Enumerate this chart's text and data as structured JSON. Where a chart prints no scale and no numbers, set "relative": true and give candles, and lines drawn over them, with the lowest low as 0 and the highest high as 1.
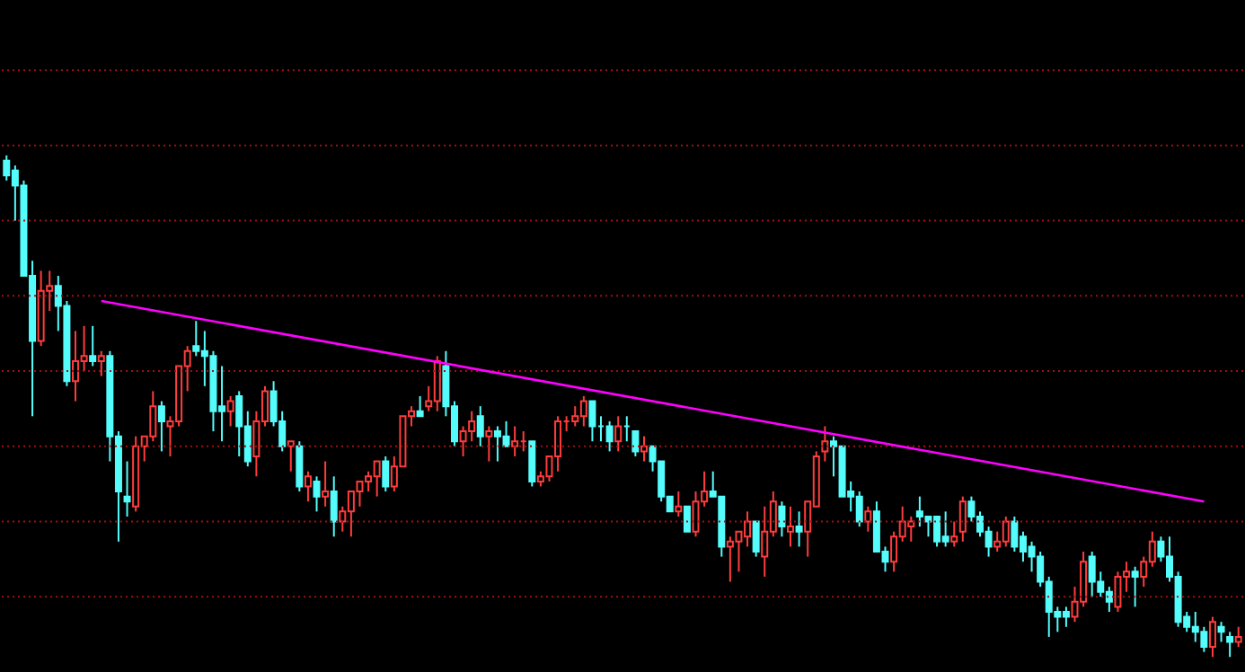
{
  "chart_data": {
    "type": "candlestick",
    "relative": true,
    "ref_lines": [
      {
        "axis": "y",
        "value": 1.17,
        "color": "#a01010",
        "line_style": "dotted"
      },
      {
        "axis": "y",
        "value": 1.02,
        "color": "#a01010",
        "line_style": "dotted"
      },
      {
        "axis": "y",
        "value": 0.87,
        "color": "#a01010",
        "line_style": "dotted"
      },
      {
        "axis": "y",
        "value": 0.72,
        "color": "#a01010",
        "line_style": "dotted"
      },
      {
        "axis": "y",
        "value": 0.57,
        "color": "#a01010",
        "line_style": "dotted"
      },
      {
        "axis": "y",
        "value": 0.42,
        "color": "#a01010",
        "line_style": "dotted"
      },
      {
        "axis": "y",
        "value": 0.27,
        "color": "#a01010",
        "line_style": "dotted"
      },
      {
        "axis": "y",
        "value": 0.12,
        "color": "#a01010",
        "line_style": "dotted"
      }
    ],
    "categories": [
      null,
      null,
      null,
      null,
      null,
      null,
      null,
      null,
      null,
      null,
      null,
      null,
      null,
      null,
      null,
      null,
      null,
      null,
      null,
      null,
      null,
      null,
      null,
      null,
      null,
      null,
      null,
      null,
      null,
      null,
      null,
      null,
      null,
      null,
      null,
      null,
      null,
      null,
      null,
      null,
      null,
      null,
      null,
      null,
      null,
      null,
      null,
      null,
      null,
      null,
      null,
      null,
      null,
      null,
      null,
      null,
      null,
      null,
      null,
      null,
      null,
      null,
      null,
      null,
      null,
      null,
      null,
      null,
      null,
      null,
      null,
      null,
      null,
      null,
      null,
      null,
      null,
      null,
      null,
      null,
      null,
      null,
      null,
      null,
      null,
      null,
      null,
      null,
      null,
      null,
      null,
      null,
      null,
      null,
      null,
      null,
      null,
      null,
      null,
      null,
      null,
      null,
      null,
      null,
      null,
      null,
      null,
      null,
      null,
      null,
      null,
      null,
      null,
      null,
      null,
      null,
      null,
      null,
      null,
      null,
      null,
      null,
      null,
      null,
      null,
      null,
      null,
      null,
      null,
      null,
      null,
      null,
      null,
      null,
      null,
      null,
      null,
      null,
      null,
      null,
      null,
      null,
      null,
      null
    ],
    "ohlc": [
      [
        0.99,
        1,
        0.95,
        0.96
      ],
      [
        0.97,
        0.98,
        0.87,
        0.94
      ],
      [
        0.94,
        0.95,
        0.76,
        0.76
      ],
      [
        0.76,
        0.79,
        0.48,
        0.63
      ],
      [
        0.63,
        0.77,
        0.62,
        0.73
      ],
      [
        0.73,
        0.77,
        0.69,
        0.74
      ],
      [
        0.74,
        0.76,
        0.65,
        0.7
      ],
      [
        0.7,
        0.71,
        0.54,
        0.55
      ],
      [
        0.55,
        0.65,
        0.51,
        0.59
      ],
      [
        0.59,
        0.66,
        0.57,
        0.6
      ],
      [
        0.6,
        0.66,
        0.58,
        0.59
      ],
      [
        0.59,
        0.61,
        0.56,
        0.6
      ],
      [
        0.6,
        0.61,
        0.39,
        0.44
      ],
      [
        0.44,
        0.45,
        0.23,
        0.33
      ],
      [
        0.32,
        0.39,
        0.28,
        0.31
      ],
      [
        0.3,
        0.44,
        0.29,
        0.42
      ],
      [
        0.42,
        0.44,
        0.39,
        0.44
      ],
      [
        0.44,
        0.53,
        0.43,
        0.5
      ],
      [
        0.5,
        0.51,
        0.41,
        0.47
      ],
      [
        0.46,
        0.48,
        0.4,
        0.47
      ],
      [
        0.47,
        0.58,
        0.46,
        0.58
      ],
      [
        0.58,
        0.62,
        0.53,
        0.61
      ],
      [
        0.62,
        0.67,
        0.6,
        0.61
      ],
      [
        0.61,
        0.65,
        0.54,
        0.6
      ],
      [
        0.6,
        0.61,
        0.45,
        0.49
      ],
      [
        0.5,
        0.58,
        0.43,
        0.49
      ],
      [
        0.49,
        0.52,
        0.46,
        0.51
      ],
      [
        0.52,
        0.53,
        0.4,
        0.46
      ],
      [
        0.46,
        0.49,
        0.38,
        0.39
      ],
      [
        0.4,
        0.49,
        0.36,
        0.47
      ],
      [
        0.47,
        0.54,
        0.46,
        0.53
      ],
      [
        0.53,
        0.55,
        0.46,
        0.47
      ],
      [
        0.47,
        0.49,
        0.41,
        0.42
      ],
      [
        0.42,
        0.43,
        0.37,
        0.43
      ],
      [
        0.42,
        0.43,
        0.33,
        0.34
      ],
      [
        0.34,
        0.37,
        0.31,
        0.36
      ],
      [
        0.35,
        0.36,
        0.29,
        0.32
      ],
      [
        0.32,
        0.39,
        0.3,
        0.33
      ],
      [
        0.33,
        0.36,
        0.24,
        0.27
      ],
      [
        0.27,
        0.3,
        0.25,
        0.29
      ],
      [
        0.29,
        0.33,
        0.24,
        0.33
      ],
      [
        0.33,
        0.35,
        0.3,
        0.35
      ],
      [
        0.35,
        0.37,
        0.33,
        0.36
      ],
      [
        0.36,
        0.39,
        0.32,
        0.39
      ],
      [
        0.39,
        0.4,
        0.33,
        0.34
      ],
      [
        0.34,
        0.4,
        0.33,
        0.38
      ],
      [
        0.38,
        0.48,
        0.38,
        0.48
      ],
      [
        0.48,
        0.5,
        0.46,
        0.49
      ],
      [
        0.49,
        0.52,
        0.48,
        0.48
      ],
      [
        0.5,
        0.54,
        0.49,
        0.51
      ],
      [
        0.51,
        0.6,
        0.49,
        0.59
      ],
      [
        0.58,
        0.61,
        0.48,
        0.5
      ],
      [
        0.5,
        0.51,
        0.42,
        0.43
      ],
      [
        0.43,
        0.46,
        0.4,
        0.45
      ],
      [
        0.45,
        0.49,
        0.43,
        0.47
      ],
      [
        0.48,
        0.5,
        0.42,
        0.44
      ],
      [
        0.44,
        0.46,
        0.39,
        0.45
      ],
      [
        0.45,
        0.46,
        0.39,
        0.44
      ],
      [
        0.44,
        0.47,
        0.42,
        0.42
      ],
      [
        0.42,
        0.46,
        0.4,
        0.43
      ],
      [
        0.43,
        0.45,
        0.41,
        0.43
      ],
      [
        0.43,
        0.43,
        0.34,
        0.35
      ],
      [
        0.35,
        0.37,
        0.34,
        0.36
      ],
      [
        0.36,
        0.4,
        0.35,
        0.4
      ],
      [
        0.4,
        0.48,
        0.37,
        0.47
      ],
      [
        0.47,
        0.48,
        0.45,
        0.47
      ],
      [
        0.47,
        0.5,
        0.46,
        0.48
      ],
      [
        0.48,
        0.52,
        0.46,
        0.51
      ],
      [
        0.51,
        0.51,
        0.43,
        0.46
      ],
      [
        0.46,
        0.48,
        0.43,
        0.46
      ],
      [
        0.46,
        0.47,
        0.41,
        0.43
      ],
      [
        0.43,
        0.48,
        0.41,
        0.46
      ],
      [
        0.46,
        0.48,
        0.43,
        0.46
      ],
      [
        0.45,
        0.45,
        0.4,
        0.41
      ],
      [
        0.41,
        0.44,
        0.39,
        0.42
      ],
      [
        0.42,
        0.42,
        0.37,
        0.39
      ],
      [
        0.39,
        0.39,
        0.31,
        0.32
      ],
      [
        0.32,
        0.32,
        0.29,
        0.29
      ],
      [
        0.29,
        0.33,
        0.28,
        0.3
      ],
      [
        0.3,
        0.3,
        0.25,
        0.25
      ],
      [
        0.25,
        0.33,
        0.24,
        0.31
      ],
      [
        0.31,
        0.37,
        0.3,
        0.33
      ],
      [
        0.33,
        0.37,
        0.32,
        0.32
      ],
      [
        0.32,
        0.32,
        0.2,
        0.22
      ],
      [
        0.22,
        0.24,
        0.15,
        0.23
      ],
      [
        0.23,
        0.25,
        0.17,
        0.25
      ],
      [
        0.24,
        0.29,
        0.22,
        0.27
      ],
      [
        0.27,
        0.27,
        0.2,
        0.21
      ],
      [
        0.2,
        0.3,
        0.16,
        0.25
      ],
      [
        0.25,
        0.33,
        0.24,
        0.31
      ],
      [
        0.3,
        0.31,
        0.24,
        0.26
      ],
      [
        0.25,
        0.3,
        0.22,
        0.26
      ],
      [
        0.26,
        0.29,
        0.22,
        0.25
      ],
      [
        0.25,
        0.31,
        0.2,
        0.31
      ],
      [
        0.3,
        0.41,
        0.3,
        0.4
      ],
      [
        0.41,
        0.46,
        0.39,
        0.43
      ],
      [
        0.43,
        0.44,
        0.36,
        0.42
      ],
      [
        0.42,
        0.42,
        0.32,
        0.32
      ],
      [
        0.33,
        0.35,
        0.29,
        0.32
      ],
      [
        0.32,
        0.33,
        0.26,
        0.27
      ],
      [
        0.27,
        0.3,
        0.25,
        0.29
      ],
      [
        0.29,
        0.31,
        0.21,
        0.21
      ],
      [
        0.21,
        0.22,
        0.17,
        0.19
      ],
      [
        0.19,
        0.25,
        0.17,
        0.24
      ],
      [
        0.24,
        0.3,
        0.23,
        0.27
      ],
      [
        0.26,
        0.28,
        0.23,
        0.27
      ],
      [
        0.29,
        0.32,
        0.26,
        0.28
      ],
      [
        0.28,
        0.28,
        0.24,
        0.27
      ],
      [
        0.28,
        0.28,
        0.22,
        0.23
      ],
      [
        0.24,
        0.29,
        0.22,
        0.23
      ],
      [
        0.23,
        0.27,
        0.22,
        0.24
      ],
      [
        0.25,
        0.32,
        0.23,
        0.31
      ],
      [
        0.31,
        0.32,
        0.27,
        0.28
      ],
      [
        0.28,
        0.29,
        0.24,
        0.25
      ],
      [
        0.25,
        0.26,
        0.2,
        0.22
      ],
      [
        0.22,
        0.25,
        0.21,
        0.23
      ],
      [
        0.23,
        0.28,
        0.22,
        0.27
      ],
      [
        0.27,
        0.28,
        0.21,
        0.22
      ],
      [
        0.24,
        0.25,
        0.19,
        0.21
      ],
      [
        0.22,
        0.23,
        0.17,
        0.2
      ],
      [
        0.2,
        0.21,
        0.14,
        0.15
      ],
      [
        0.15,
        0.16,
        0.04,
        0.09
      ],
      [
        0.09,
        0.1,
        0.05,
        0.08
      ],
      [
        0.09,
        0.1,
        0.06,
        0.08
      ],
      [
        0.08,
        0.14,
        0.07,
        0.11
      ],
      [
        0.11,
        0.21,
        0.1,
        0.19
      ],
      [
        0.2,
        0.21,
        0.12,
        0.15
      ],
      [
        0.15,
        0.17,
        0.12,
        0.13
      ],
      [
        0.13,
        0.14,
        0.09,
        0.11
      ],
      [
        0.1,
        0.17,
        0.09,
        0.16
      ],
      [
        0.16,
        0.19,
        0.13,
        0.17
      ],
      [
        0.17,
        0.18,
        0.1,
        0.16
      ],
      [
        0.16,
        0.2,
        0.14,
        0.19
      ],
      [
        0.19,
        0.25,
        0.18,
        0.23
      ],
      [
        0.23,
        0.24,
        0.19,
        0.2
      ],
      [
        0.2,
        0.24,
        0.15,
        0.16
      ],
      [
        0.16,
        0.17,
        0.06,
        0.07
      ],
      [
        0.08,
        0.09,
        0.05,
        0.06
      ],
      [
        0.06,
        0.09,
        0.03,
        0.05
      ],
      [
        0.05,
        0.06,
        0.01,
        0.02
      ],
      [
        0.02,
        0.08,
        0,
        0.07
      ],
      [
        0.06,
        0.07,
        0.03,
        0.05
      ],
      [
        0.04,
        0.05,
        0,
        0.03
      ],
      [
        0.03,
        0.06,
        0.02,
        0.04
      ]
    ],
    "colors": [
      "#54fcfc",
      "#54fcfc",
      "#54fcfc",
      "#54fcfc",
      "#ff3c3c",
      "#ff3c3c",
      "#54fcfc",
      "#54fcfc",
      "#ff3c3c",
      "#ff3c3c",
      "#54fcfc",
      "#ff3c3c",
      "#54fcfc",
      "#54fcfc",
      "#54fcfc",
      "#ff3c3c",
      "#ff3c3c",
      "#ff3c3c",
      "#54fcfc",
      "#ff3c3c",
      "#ff3c3c",
      "#ff3c3c",
      "#54fcfc",
      "#54fcfc",
      "#54fcfc",
      "#54fcfc",
      "#ff3c3c",
      "#54fcfc",
      "#54fcfc",
      "#ff3c3c",
      "#ff3c3c",
      "#54fcfc",
      "#54fcfc",
      "#ff3c3c",
      "#54fcfc",
      "#ff3c3c",
      "#54fcfc",
      "#ff3c3c",
      "#54fcfc",
      "#ff3c3c",
      "#ff3c3c",
      "#ff3c3c",
      "#ff3c3c",
      "#ff3c3c",
      "#54fcfc",
      "#ff3c3c",
      "#ff3c3c",
      "#ff3c3c",
      "#54fcfc",
      "#ff3c3c",
      "#ff3c3c",
      "#54fcfc",
      "#54fcfc",
      "#ff3c3c",
      "#ff3c3c",
      "#54fcfc",
      "#ff3c3c",
      "#54fcfc",
      "#54fcfc",
      "#ff3c3c",
      "#ff3c3c",
      "#54fcfc",
      "#ff3c3c",
      "#ff3c3c",
      "#ff3c3c",
      "#ff3c3c",
      "#ff3c3c",
      "#ff3c3c",
      "#54fcfc",
      "#54fcfc",
      "#54fcfc",
      "#ff3c3c",
      "#54fcfc",
      "#54fcfc",
      "#ff3c3c",
      "#54fcfc",
      "#54fcfc",
      "#54fcfc",
      "#ff3c3c",
      "#54fcfc",
      "#ff3c3c",
      "#ff3c3c",
      "#54fcfc",
      "#54fcfc",
      "#ff3c3c",
      "#ff3c3c",
      "#ff3c3c",
      "#54fcfc",
      "#ff3c3c",
      "#ff3c3c",
      "#54fcfc",
      "#ff3c3c",
      "#54fcfc",
      "#ff3c3c",
      "#ff3c3c",
      "#ff3c3c",
      "#54fcfc",
      "#54fcfc",
      "#54fcfc",
      "#54fcfc",
      "#ff3c3c",
      "#54fcfc",
      "#54fcfc",
      "#ff3c3c",
      "#ff3c3c",
      "#ff3c3c",
      "#54fcfc",
      "#54fcfc",
      "#54fcfc",
      "#54fcfc",
      "#ff3c3c",
      "#ff3c3c",
      "#54fcfc",
      "#54fcfc",
      "#54fcfc",
      "#ff3c3c",
      "#ff3c3c",
      "#54fcfc",
      "#54fcfc",
      "#54fcfc",
      "#54fcfc",
      "#54fcfc",
      "#54fcfc",
      "#54fcfc",
      "#ff3c3c",
      "#ff3c3c",
      "#54fcfc",
      "#54fcfc",
      "#54fcfc",
      "#ff3c3c",
      "#ff3c3c",
      "#54fcfc",
      "#ff3c3c",
      "#ff3c3c",
      "#54fcfc",
      "#54fcfc",
      "#54fcfc",
      "#54fcfc",
      "#54fcfc",
      "#54fcfc",
      "#ff3c3c",
      "#54fcfc",
      "#54fcfc",
      "#ff3c3c"
    ],
    "series": [
      {
        "type": "line",
        "color": "#ff00ff",
        "values": [
          null,
          null,
          null,
          null,
          null,
          null,
          null,
          null,
          null,
          null,
          null,
          0.71,
          null,
          null,
          null,
          null,
          null,
          null,
          null,
          null,
          null,
          null,
          null,
          null,
          null,
          null,
          null,
          null,
          null,
          null,
          null,
          null,
          null,
          null,
          null,
          null,
          null,
          null,
          null,
          null,
          null,
          null,
          null,
          null,
          null,
          null,
          null,
          null,
          null,
          null,
          null,
          null,
          null,
          null,
          null,
          null,
          null,
          null,
          null,
          null,
          null,
          null,
          null,
          null,
          null,
          null,
          null,
          null,
          null,
          null,
          null,
          null,
          null,
          null,
          null,
          null,
          null,
          null,
          null,
          null,
          null,
          null,
          null,
          null,
          null,
          null,
          null,
          null,
          null,
          null,
          null,
          null,
          null,
          null,
          null,
          null,
          null,
          null,
          null,
          null,
          null,
          null,
          null,
          null,
          null,
          null,
          null,
          null,
          null,
          null,
          null,
          null,
          null,
          null,
          null,
          null,
          null,
          null,
          null,
          null,
          null,
          null,
          null,
          null,
          null,
          null,
          null,
          null,
          null,
          null,
          null,
          null,
          null,
          null,
          null,
          null,
          null,
          null,
          null,
          0.31,
          null,
          null,
          null,
          null
        ]
      }
    ]
  }
}
